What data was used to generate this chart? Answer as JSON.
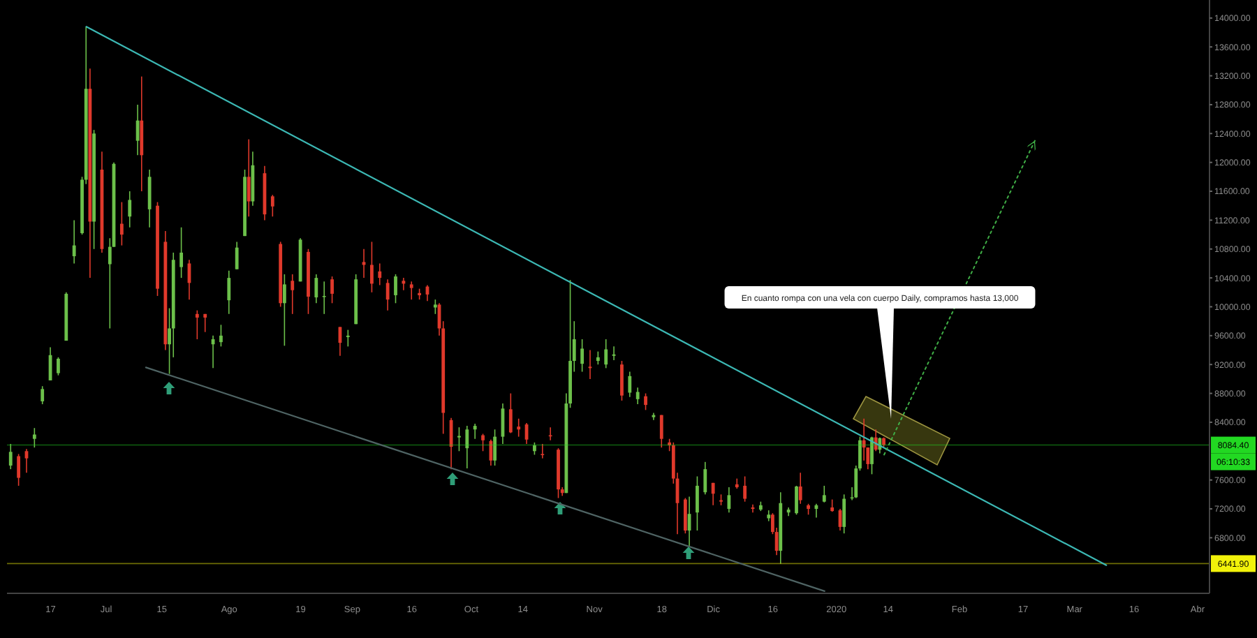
{
  "chart_data": {
    "type": "candlestick",
    "x": [
      "2019-06-07",
      "2019-06-09",
      "2019-06-11",
      "2019-06-13",
      "2019-06-15",
      "2019-06-17",
      "2019-06-19",
      "2019-06-21",
      "2019-06-23",
      "2019-06-25",
      "2019-06-26",
      "2019-06-27",
      "2019-06-28",
      "2019-06-30",
      "2019-07-02",
      "2019-07-03",
      "2019-07-05",
      "2019-07-07",
      "2019-07-09",
      "2019-07-10",
      "2019-07-12",
      "2019-07-14",
      "2019-07-16",
      "2019-07-17",
      "2019-07-18",
      "2019-07-20",
      "2019-07-22",
      "2019-07-24",
      "2019-07-26",
      "2019-07-28",
      "2019-07-30",
      "2019-08-01",
      "2019-08-03",
      "2019-08-05",
      "2019-08-06",
      "2019-08-07",
      "2019-08-10",
      "2019-08-12",
      "2019-08-14",
      "2019-08-15",
      "2019-08-17",
      "2019-08-19",
      "2019-08-21",
      "2019-08-23",
      "2019-08-25",
      "2019-08-27",
      "2019-08-29",
      "2019-08-31",
      "2019-09-02",
      "2019-09-04",
      "2019-09-06",
      "2019-09-08",
      "2019-09-10",
      "2019-09-12",
      "2019-09-14",
      "2019-09-16",
      "2019-09-18",
      "2019-09-20",
      "2019-09-22",
      "2019-09-23",
      "2019-09-24",
      "2019-09-26",
      "2019-09-28",
      "2019-09-30",
      "2019-10-02",
      "2019-10-04",
      "2019-10-06",
      "2019-10-07",
      "2019-10-09",
      "2019-10-11",
      "2019-10-13",
      "2019-10-15",
      "2019-10-17",
      "2019-10-19",
      "2019-10-21",
      "2019-10-23",
      "2019-10-24",
      "2019-10-25",
      "2019-10-26",
      "2019-10-27",
      "2019-10-29",
      "2019-10-31",
      "2019-11-02",
      "2019-11-04",
      "2019-11-06",
      "2019-11-08",
      "2019-11-10",
      "2019-11-12",
      "2019-11-14",
      "2019-11-16",
      "2019-11-18",
      "2019-11-20",
      "2019-11-21",
      "2019-11-22",
      "2019-11-24",
      "2019-11-25",
      "2019-11-27",
      "2019-11-29",
      "2019-12-01",
      "2019-12-03",
      "2019-12-05",
      "2019-12-07",
      "2019-12-09",
      "2019-12-11",
      "2019-12-13",
      "2019-12-15",
      "2019-12-16",
      "2019-12-17",
      "2019-12-18",
      "2019-12-20",
      "2019-12-22",
      "2019-12-23",
      "2019-12-25",
      "2019-12-27",
      "2019-12-29",
      "2019-12-31",
      "2020-01-02",
      "2020-01-03",
      "2020-01-05",
      "2020-01-06",
      "2020-01-07",
      "2020-01-08",
      "2020-01-09",
      "2020-01-10",
      "2020-01-11",
      "2020-01-12",
      "2020-01-13"
    ],
    "ohlc": [
      [
        7800,
        8100,
        7750,
        7990
      ],
      [
        7930,
        7960,
        7520,
        7630
      ],
      [
        8000,
        8030,
        7700,
        7900
      ],
      [
        8170,
        8320,
        8050,
        8230
      ],
      [
        8690,
        8900,
        8650,
        8860
      ],
      [
        8980,
        9440,
        8980,
        9330
      ],
      [
        9080,
        9300,
        9050,
        9280
      ],
      [
        9530,
        10200,
        9530,
        10180
      ],
      [
        10700,
        11200,
        10600,
        10850
      ],
      [
        11020,
        11800,
        11000,
        11760
      ],
      [
        11760,
        13880,
        11700,
        13020
      ],
      [
        13020,
        13300,
        10400,
        11180
      ],
      [
        11180,
        12450,
        10800,
        12400
      ],
      [
        11900,
        12150,
        10750,
        10800
      ],
      [
        10590,
        10950,
        9700,
        10830
      ],
      [
        10830,
        12000,
        10830,
        11980
      ],
      [
        11150,
        11450,
        10850,
        11000
      ],
      [
        11250,
        11600,
        11100,
        11480
      ],
      [
        12300,
        12800,
        12100,
        12580
      ],
      [
        12580,
        13190,
        11600,
        12100
      ],
      [
        11350,
        11900,
        11100,
        11800
      ],
      [
        11400,
        11450,
        10150,
        10250
      ],
      [
        10900,
        11050,
        9400,
        9480
      ],
      [
        9480,
        9980,
        9070,
        9700
      ],
      [
        9700,
        10750,
        9300,
        10650
      ],
      [
        10550,
        11100,
        10400,
        10750
      ],
      [
        10600,
        10650,
        10100,
        10330
      ],
      [
        9900,
        9950,
        9550,
        9850
      ],
      [
        9900,
        9900,
        9650,
        9850
      ],
      [
        9480,
        9600,
        9150,
        9550
      ],
      [
        9510,
        9750,
        9450,
        9600
      ],
      [
        10090,
        10500,
        9900,
        10400
      ],
      [
        10520,
        10900,
        10520,
        10820
      ],
      [
        10980,
        11900,
        10980,
        11800
      ],
      [
        11800,
        12320,
        11250,
        11460
      ],
      [
        11460,
        12150,
        11400,
        11960
      ],
      [
        11850,
        11950,
        11200,
        11280
      ],
      [
        11530,
        11550,
        11250,
        11390
      ],
      [
        10870,
        10900,
        10000,
        10050
      ],
      [
        10050,
        10450,
        9460,
        10310
      ],
      [
        10360,
        10450,
        9900,
        10230
      ],
      [
        10350,
        10950,
        10350,
        10930
      ],
      [
        10760,
        10800,
        9900,
        10140
      ],
      [
        10130,
        10450,
        10050,
        10400
      ],
      [
        10140,
        10350,
        9900,
        10150
      ],
      [
        10380,
        10420,
        10050,
        10180
      ],
      [
        9720,
        9720,
        9320,
        9500
      ],
      [
        9580,
        9680,
        9450,
        9600
      ],
      [
        9760,
        10450,
        9760,
        10380
      ],
      [
        10620,
        10800,
        10400,
        10580
      ],
      [
        10580,
        10900,
        10200,
        10320
      ],
      [
        10490,
        10600,
        10300,
        10400
      ],
      [
        10330,
        10380,
        9950,
        10100
      ],
      [
        10160,
        10450,
        10050,
        10420
      ],
      [
        10360,
        10400,
        10230,
        10320
      ],
      [
        10310,
        10350,
        10100,
        10260
      ],
      [
        10190,
        10250,
        10100,
        10160
      ],
      [
        10280,
        10300,
        10080,
        10170
      ],
      [
        9990,
        10100,
        9900,
        10030
      ],
      [
        10030,
        10050,
        9600,
        9700
      ],
      [
        9700,
        9800,
        8240,
        8530
      ],
      [
        8430,
        8460,
        7750,
        8060
      ],
      [
        8190,
        8330,
        8000,
        8210
      ],
      [
        8040,
        8350,
        7760,
        8300
      ],
      [
        8300,
        8380,
        8170,
        8350
      ],
      [
        8220,
        8240,
        8000,
        8150
      ],
      [
        8140,
        8160,
        7800,
        7870
      ],
      [
        7870,
        8300,
        7800,
        8200
      ],
      [
        8200,
        8660,
        8100,
        8590
      ],
      [
        8580,
        8800,
        8250,
        8260
      ],
      [
        8340,
        8450,
        8200,
        8300
      ],
      [
        8370,
        8390,
        8100,
        8160
      ],
      [
        8000,
        8120,
        7950,
        8080
      ],
      [
        7960,
        8100,
        7900,
        7950
      ],
      [
        8220,
        8330,
        8150,
        8210
      ],
      [
        8020,
        8040,
        7350,
        7470
      ],
      [
        7470,
        7500,
        7380,
        7420
      ],
      [
        7420,
        8800,
        7420,
        8660
      ],
      [
        8660,
        10370,
        8600,
        9250
      ],
      [
        9250,
        9800,
        9100,
        9550
      ],
      [
        9210,
        9550,
        9100,
        9420
      ],
      [
        9170,
        9400,
        9000,
        9150
      ],
      [
        9250,
        9380,
        9200,
        9300
      ],
      [
        9200,
        9550,
        9150,
        9410
      ],
      [
        9320,
        9450,
        9260,
        9340
      ],
      [
        9200,
        9250,
        8700,
        8770
      ],
      [
        8810,
        9100,
        8750,
        9040
      ],
      [
        8720,
        8880,
        8650,
        8820
      ],
      [
        8760,
        8800,
        8570,
        8640
      ],
      [
        8470,
        8530,
        8430,
        8500
      ],
      [
        8500,
        8500,
        8050,
        8170
      ],
      [
        8120,
        8170,
        8000,
        8080
      ],
      [
        8080,
        8120,
        7550,
        7620
      ],
      [
        7620,
        7700,
        6850,
        7280
      ],
      [
        7330,
        7350,
        6860,
        6900
      ],
      [
        6900,
        7370,
        6680,
        7130
      ],
      [
        7150,
        7650,
        6900,
        7520
      ],
      [
        7430,
        7850,
        7400,
        7750
      ],
      [
        7560,
        7560,
        7250,
        7410
      ],
      [
        7320,
        7400,
        7250,
        7300
      ],
      [
        7200,
        7500,
        7150,
        7390
      ],
      [
        7540,
        7620,
        7480,
        7500
      ],
      [
        7520,
        7650,
        7300,
        7340
      ],
      [
        7220,
        7260,
        7150,
        7200
      ],
      [
        7190,
        7300,
        7170,
        7250
      ],
      [
        7070,
        7180,
        7030,
        7120
      ],
      [
        7120,
        7140,
        6850,
        6880
      ],
      [
        6880,
        6940,
        6560,
        6620
      ],
      [
        6620,
        7430,
        6440,
        7280
      ],
      [
        7150,
        7220,
        7100,
        7190
      ],
      [
        7140,
        7520,
        7120,
        7510
      ],
      [
        7510,
        7700,
        7270,
        7320
      ],
      [
        7250,
        7270,
        7120,
        7200
      ],
      [
        7200,
        7270,
        7080,
        7250
      ],
      [
        7300,
        7520,
        7290,
        7390
      ],
      [
        7220,
        7330,
        7160,
        7170
      ],
      [
        7180,
        7200,
        6900,
        6950
      ],
      [
        6950,
        7400,
        6860,
        7340
      ],
      [
        7350,
        7500,
        7320,
        7360
      ],
      [
        7360,
        7800,
        7350,
        7760
      ],
      [
        7760,
        8200,
        7730,
        8150
      ],
      [
        8150,
        8450,
        7870,
        8050
      ],
      [
        8050,
        8050,
        7750,
        7820
      ],
      [
        7820,
        8200,
        7680,
        8190
      ],
      [
        8190,
        8300,
        8000,
        8020
      ],
      [
        8020,
        8190,
        7970,
        8180
      ],
      [
        8180,
        8190,
        8060,
        8084.4
      ]
    ],
    "colors": [
      "#6cc04a",
      "#e0392b",
      "#e0392b",
      "#6cc04a",
      "#6cc04a",
      "#6cc04a",
      "#6cc04a",
      "#6cc04a",
      "#6cc04a",
      "#6cc04a",
      "#6cc04a",
      "#e0392b",
      "#6cc04a",
      "#e0392b",
      "#6cc04a",
      "#6cc04a",
      "#e0392b",
      "#6cc04a",
      "#6cc04a",
      "#e0392b",
      "#6cc04a",
      "#e0392b",
      "#e0392b",
      "#6cc04a",
      "#6cc04a",
      "#6cc04a",
      "#e0392b",
      "#e0392b",
      "#e0392b",
      "#6cc04a",
      "#6cc04a",
      "#6cc04a",
      "#6cc04a",
      "#6cc04a",
      "#e0392b",
      "#6cc04a",
      "#e0392b",
      "#e0392b",
      "#e0392b",
      "#6cc04a",
      "#e0392b",
      "#6cc04a",
      "#e0392b",
      "#6cc04a",
      "#6cc04a",
      "#e0392b",
      "#e0392b",
      "#6cc04a",
      "#6cc04a",
      "#e0392b",
      "#e0392b",
      "#e0392b",
      "#e0392b",
      "#6cc04a",
      "#e0392b",
      "#e0392b",
      "#e0392b",
      "#e0392b",
      "#6cc04a",
      "#e0392b",
      "#e0392b",
      "#e0392b",
      "#6cc04a",
      "#6cc04a",
      "#6cc04a",
      "#e0392b",
      "#e0392b",
      "#6cc04a",
      "#6cc04a",
      "#e0392b",
      "#e0392b",
      "#e0392b",
      "#6cc04a",
      "#e0392b",
      "#e0392b",
      "#e0392b",
      "#e0392b",
      "#6cc04a",
      "#6cc04a",
      "#6cc04a",
      "#6cc04a",
      "#e0392b",
      "#6cc04a",
      "#6cc04a",
      "#6cc04a",
      "#e0392b",
      "#6cc04a",
      "#6cc04a",
      "#e0392b",
      "#6cc04a",
      "#e0392b",
      "#e0392b",
      "#e0392b",
      "#e0392b",
      "#e0392b",
      "#6cc04a",
      "#6cc04a",
      "#6cc04a",
      "#e0392b",
      "#e0392b",
      "#6cc04a",
      "#e0392b",
      "#e0392b",
      "#e0392b",
      "#6cc04a",
      "#6cc04a",
      "#e0392b",
      "#e0392b",
      "#6cc04a",
      "#6cc04a",
      "#6cc04a",
      "#e0392b",
      "#e0392b",
      "#6cc04a",
      "#6cc04a",
      "#e0392b",
      "#e0392b",
      "#6cc04a",
      "#6cc04a",
      "#6cc04a",
      "#6cc04a",
      "#e0392b",
      "#e0392b",
      "#6cc04a",
      "#e0392b",
      "#6cc04a",
      "#e0392b"
    ],
    "series": [
      {
        "type": "line",
        "x": [
          "2019-06-26",
          "2020-03-09"
        ],
        "values": [
          13880,
          6420
        ],
        "color": "#3cb8b4"
      },
      {
        "type": "line",
        "x": [
          "2019-07-11",
          "2019-12-29"
        ],
        "values": [
          9160,
          6060
        ],
        "color": "#4f6464"
      },
      {
        "type": "line",
        "x": [
          "2020-01-13",
          "2020-02-20"
        ],
        "values": [
          7950,
          12300
        ],
        "color": "#3fae46",
        "line_style": "dotted"
      }
    ],
    "xlim": [
      "2019-06-06",
      "2020-04-04"
    ],
    "ylim": [
      6030,
      14250
    ],
    "xticks": [
      {
        "value": "2019-06-17",
        "label": "17"
      },
      {
        "value": "2019-07-01",
        "label": "Jul"
      },
      {
        "value": "2019-07-15",
        "label": "15"
      },
      {
        "value": "2019-08-01",
        "label": "Ago"
      },
      {
        "value": "2019-08-19",
        "label": "19"
      },
      {
        "value": "2019-09-01",
        "label": "Sep"
      },
      {
        "value": "2019-09-16",
        "label": "16"
      },
      {
        "value": "2019-10-01",
        "label": "Oct"
      },
      {
        "value": "2019-10-14",
        "label": "14"
      },
      {
        "value": "2019-11-01",
        "label": "Nov"
      },
      {
        "value": "2019-11-18",
        "label": "18"
      },
      {
        "value": "2019-12-01",
        "label": "Dic"
      },
      {
        "value": "2019-12-16",
        "label": "16"
      },
      {
        "value": "2020-01-01",
        "label": "2020"
      },
      {
        "value": "2020-01-14",
        "label": "14"
      },
      {
        "value": "2020-02-01",
        "label": "Feb"
      },
      {
        "value": "2020-02-17",
        "label": "17"
      },
      {
        "value": "2020-03-01",
        "label": "Mar"
      },
      {
        "value": "2020-03-16",
        "label": "16"
      },
      {
        "value": "2020-04-01",
        "label": "Abr"
      }
    ],
    "yticks": [
      {
        "value": 6800,
        "label": "6800.00"
      },
      {
        "value": 7200,
        "label": "7200.00"
      },
      {
        "value": 7600,
        "label": "7600.00"
      },
      {
        "value": 8400,
        "label": "8400.00"
      },
      {
        "value": 8800,
        "label": "8800.00"
      },
      {
        "value": 9200,
        "label": "9200.00"
      },
      {
        "value": 9600,
        "label": "9600.00"
      },
      {
        "value": 10000,
        "label": "10000.00"
      },
      {
        "value": 10400,
        "label": "10400.00"
      },
      {
        "value": 10800,
        "label": "10800.00"
      },
      {
        "value": 11200,
        "label": "11200.00"
      },
      {
        "value": 11600,
        "label": "11600.00"
      },
      {
        "value": 12000,
        "label": "12000.00"
      },
      {
        "value": 12400,
        "label": "12400.00"
      },
      {
        "value": 12800,
        "label": "12800.00"
      },
      {
        "value": 13200,
        "label": "13200.00"
      },
      {
        "value": 13600,
        "label": "13600.00"
      },
      {
        "value": 14000,
        "label": "14000.00"
      }
    ],
    "ref_lines": [
      {
        "axis": "y",
        "value": 8084.4,
        "label": "8084.40",
        "color": "#22d822"
      },
      {
        "axis": "y",
        "value": 6441.9,
        "label": "6441.90",
        "color": "#f2f20a"
      }
    ],
    "annotations": [
      "En cuanto rompa con una vela con cuerpo Daily, compramos hasta 13,000",
      {
        "text": "06:10:33",
        "y": 8084.4
      }
    ]
  }
}
